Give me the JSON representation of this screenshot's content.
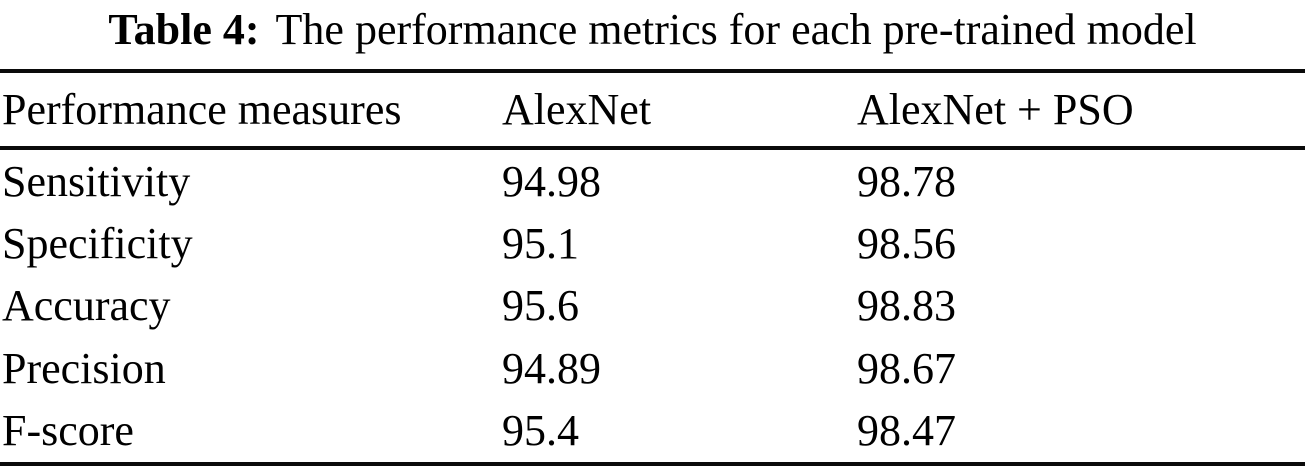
{
  "caption": {
    "label": "Table 4:",
    "text": "The performance metrics for each pre-trained model"
  },
  "table": {
    "columns": [
      "Performance measures",
      "AlexNet",
      "AlexNet + PSO"
    ],
    "rows": [
      {
        "measure": "Sensitivity",
        "alexnet": "94.98",
        "alexnet_pso": "98.78"
      },
      {
        "measure": "Specificity",
        "alexnet": "95.1",
        "alexnet_pso": "98.56"
      },
      {
        "measure": "Accuracy",
        "alexnet": "95.6",
        "alexnet_pso": "98.83"
      },
      {
        "measure": "Precision",
        "alexnet": "94.89",
        "alexnet_pso": "98.67"
      },
      {
        "measure": "F-score",
        "alexnet": "95.4",
        "alexnet_pso": "98.47"
      }
    ]
  },
  "chart_data": {
    "type": "table",
    "title": "Table 4: The performance metrics for each pre-trained model",
    "columns": [
      "Performance measures",
      "AlexNet",
      "AlexNet + PSO"
    ],
    "rows": [
      [
        "Sensitivity",
        "94.98",
        "98.78"
      ],
      [
        "Specificity",
        "95.1",
        "98.56"
      ],
      [
        "Accuracy",
        "95.6",
        "98.83"
      ],
      [
        "Precision",
        "94.89",
        "98.67"
      ],
      [
        "F-score",
        "95.4",
        "98.47"
      ]
    ]
  },
  "colors": {
    "text": "#000000",
    "background": "#ffffff",
    "rule": "#0a0a0a"
  }
}
